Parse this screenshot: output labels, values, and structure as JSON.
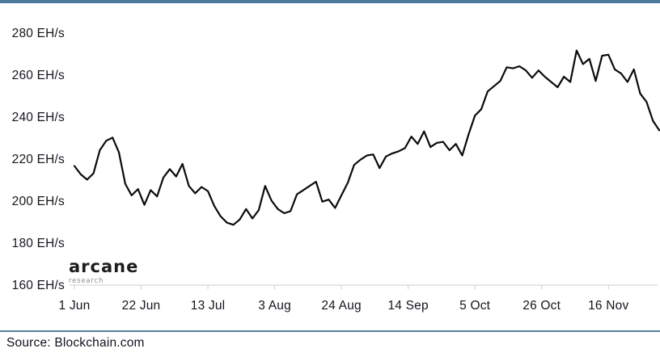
{
  "page": {
    "logo": {
      "brand": "arcane",
      "sub": "research"
    },
    "source_note": "Source: Blockchain.com"
  },
  "colors": {
    "accent_rule": "#4e7a9b",
    "bottom_rule": "#54809f",
    "line": "#0b0b0e",
    "axis": "#cccccc",
    "tick_text": "#15161d"
  },
  "chart_data": {
    "type": "line",
    "title": "",
    "unit": "EH/s",
    "grid": false,
    "legend": "none",
    "ylim": [
      160,
      290
    ],
    "y_ticks": [
      {
        "value": 280,
        "label": "280 EH/s"
      },
      {
        "value": 260,
        "label": "260 EH/s"
      },
      {
        "value": 240,
        "label": "240 EH/s"
      },
      {
        "value": 220,
        "label": "220 EH/s"
      },
      {
        "value": 200,
        "label": "200 EH/s"
      },
      {
        "value": 180,
        "label": "180 EH/s"
      },
      {
        "value": 160,
        "label": "160 EH/s"
      }
    ],
    "x_ticks": [
      "1 Jun",
      "22 Jun",
      "13 Jul",
      "3 Aug",
      "24 Aug",
      "14 Sep",
      "5 Oct",
      "26 Oct",
      "16 Nov"
    ],
    "x_tick_interval_days": 21,
    "series": [
      {
        "start_label": "1 Jun",
        "day_step": 2,
        "values": [
          217.5,
          213.5,
          211,
          214,
          225,
          229.5,
          231,
          224,
          209,
          203.5,
          206.5,
          199,
          206,
          203,
          212,
          216,
          212.5,
          218.5,
          208,
          204.5,
          207.5,
          205.5,
          198.5,
          193.5,
          190.5,
          189.5,
          192,
          197,
          192.5,
          196.5,
          208,
          201,
          197,
          195,
          196,
          204,
          206,
          208,
          210,
          200.5,
          201.5,
          197.5,
          203.5,
          209.5,
          218,
          220.5,
          222.5,
          223,
          216.5,
          222,
          223.5,
          224.5,
          226,
          231.5,
          228,
          234,
          226.5,
          228.5,
          229,
          225,
          228,
          222.5,
          232.5,
          241.5,
          244.5,
          253,
          255.5,
          258,
          264.5,
          264,
          265,
          263,
          259.5,
          263,
          260,
          257.5,
          255,
          260,
          257.5,
          272.5,
          266,
          268.5,
          258,
          270,
          270.5,
          263.5,
          261.5,
          257.5,
          263.5,
          252,
          248,
          239,
          234.5
        ]
      }
    ]
  }
}
